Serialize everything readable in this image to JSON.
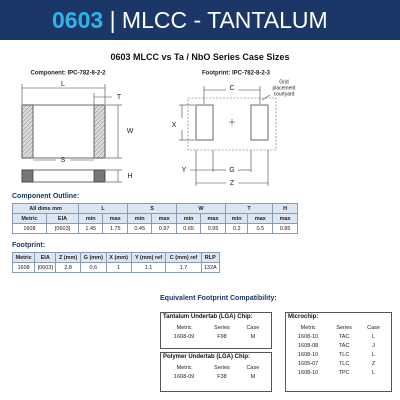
{
  "header": {
    "part": "0603",
    "title": "| MLCC - TANTALUM"
  },
  "title": "0603 MLCC vs Ta / NbO Series Case Sizes",
  "component_diagram": {
    "caption": "Component: IPC-782-8-2-2",
    "labels": [
      "L",
      "T",
      "W",
      "S",
      "H"
    ]
  },
  "footprint_diagram": {
    "caption": "Footprint: IPC-782-8-2-3",
    "labels": [
      "C",
      "X",
      "Y",
      "G",
      "Z"
    ],
    "note": [
      "Grid",
      "placement",
      "courtyard"
    ]
  },
  "component_outline": {
    "heading": "Component Outline:",
    "header_rows": [
      [
        "All dims mm",
        "L",
        "S",
        "W",
        "T",
        "H"
      ],
      [
        "Metric",
        "EIA",
        "min",
        "max",
        "min",
        "max",
        "min",
        "max",
        "min",
        "max",
        "max"
      ]
    ],
    "rows": [
      [
        "1608",
        "[0603]",
        "1.45",
        "1.75",
        "0.45",
        "0.97",
        "0.65",
        "0.95",
        "0.2",
        "0.5",
        "0.85"
      ]
    ]
  },
  "footprint": {
    "heading": "Footprint:",
    "header_rows": [
      [
        "Metric",
        "EIA",
        "Z (mm)",
        "G (mm)",
        "X (mm)",
        "Y (mm) ref",
        "C (mm) ref",
        "RLP"
      ]
    ],
    "rows": [
      [
        "1608",
        "[0603]",
        "2.8",
        "0.6",
        "1",
        "1.1",
        "1.7",
        "132A"
      ]
    ]
  },
  "compatibility": {
    "heading": "Equivalent Footprint Compatibility:",
    "tantalum": {
      "heading": "Tantalum Undertab (LGA) Chip:",
      "header_rows": [
        [
          "Metric",
          "Series",
          "Case"
        ]
      ],
      "rows": [
        [
          "1608-09",
          "F98",
          "M"
        ]
      ]
    },
    "polymer": {
      "heading": "Polymer Undertab (LGA) Chip:",
      "header_rows": [
        [
          "Metric",
          "Series",
          "Case"
        ]
      ],
      "rows": [
        [
          "1608-09",
          "F38",
          "M"
        ]
      ]
    },
    "microchip": {
      "heading": "Microchip:",
      "header_rows": [
        [
          "Metric",
          "Series",
          "Case"
        ]
      ],
      "rows": [
        [
          "1608-10",
          "TAC",
          "L"
        ],
        [
          "1608-08",
          "TAC",
          "J"
        ],
        [
          "1608-10",
          "TLC",
          "L"
        ],
        [
          "1605-07",
          "TLC",
          "Z"
        ],
        [
          "1608-10",
          "TPC",
          "L"
        ]
      ]
    }
  }
}
